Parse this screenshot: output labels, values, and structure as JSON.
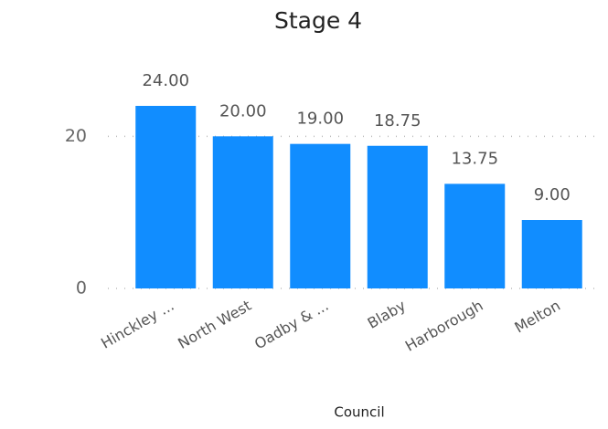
{
  "chart_data": {
    "type": "bar",
    "title": "Stage 4",
    "x_label": "Council",
    "categories": [
      "Hinckley ...",
      "North West",
      "Oadby & ...",
      "Blaby",
      "Harborough",
      "Melton"
    ],
    "values": [
      24,
      20,
      19,
      18.75,
      13.75,
      9
    ],
    "value_labels": [
      "24.00",
      "20.00",
      "19.00",
      "18.75",
      "13.75",
      "9.00"
    ],
    "color": "#118DFF",
    "ylim": [
      0,
      24
    ],
    "yticks": [
      0,
      20
    ],
    "grid": true
  }
}
